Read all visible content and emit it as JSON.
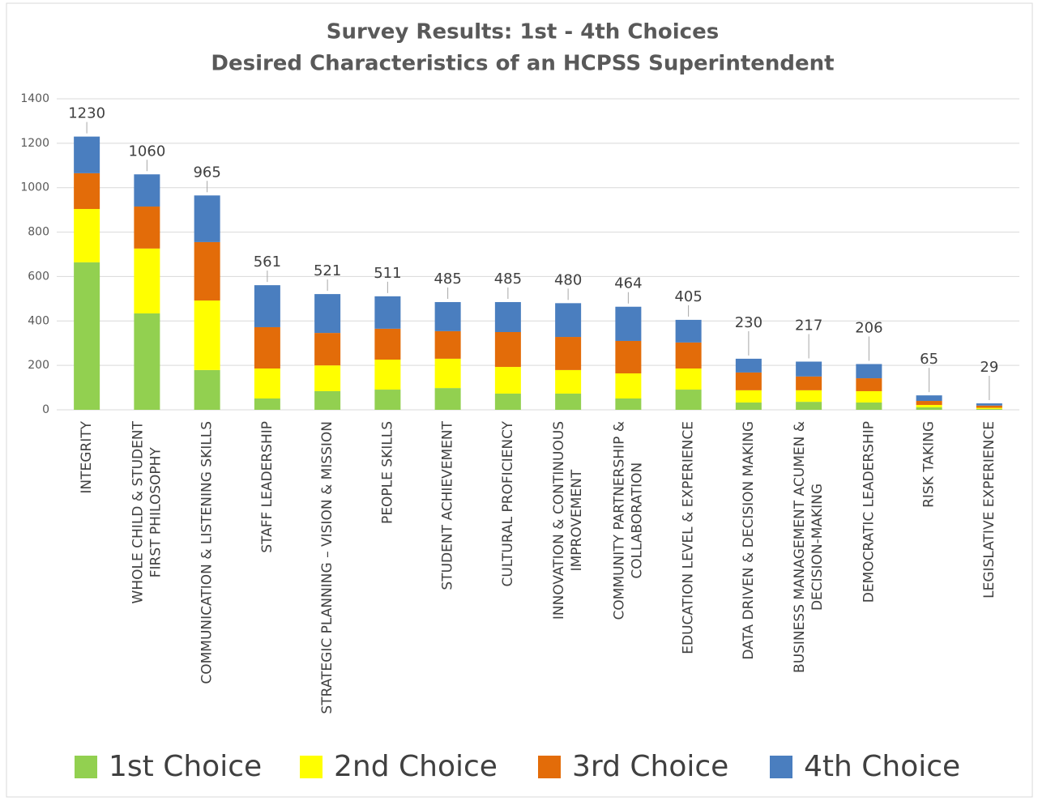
{
  "chart_data": {
    "type": "stacked_bar",
    "title": "Survey Results: 1st - 4th Choices",
    "subtitle": "Desired Characteristics of an HCPSS Superintendent",
    "categories": [
      "INTEGRITY",
      "WHOLE CHILD & STUDENT FIRST PHILOSOPHY",
      "COMMUNICATION & LISTENING SKILLS",
      "STAFF LEADERSHIP",
      "STRATEGIC PLANNING – VISION & MISSION",
      "PEOPLE SKILLS",
      "STUDENT ACHIEVEMENT",
      "CULTURAL PROFICIENCY",
      "INNOVATION & CONTINUOUS IMPROVEMENT",
      "COMMUNITY PARTNERSHIP & COLLABORATION",
      "EDUCATION LEVEL & EXPERIENCE",
      "DATA DRIVEN & DECISION MAKING",
      "BUSINESS MANAGEMENT ACUMEN & DECISION-MAKING",
      "DEMOCRATIC LEADERSHIP",
      "RISK TAKING",
      "LEGISLATIVE EXPERIENCE"
    ],
    "series": [
      {
        "name": "1st Choice",
        "color": "#92d050",
        "values": [
          664,
          434,
          179,
          51,
          84,
          91,
          98,
          73,
          73,
          51,
          91,
          33,
          36,
          33,
          11,
          4
        ]
      },
      {
        "name": "2nd Choice",
        "color": "#ffff00",
        "values": [
          240,
          292,
          313,
          135,
          116,
          135,
          132,
          120,
          106,
          113,
          95,
          55,
          52,
          51,
          11,
          5
        ]
      },
      {
        "name": "3rd Choice",
        "color": "#e36c09",
        "values": [
          161,
          189,
          263,
          186,
          146,
          139,
          124,
          157,
          149,
          146,
          117,
          80,
          62,
          58,
          18,
          10
        ]
      },
      {
        "name": "4th Choice",
        "color": "#4a7ebf",
        "values": [
          165,
          145,
          210,
          189,
          175,
          146,
          131,
          135,
          152,
          154,
          102,
          62,
          67,
          64,
          25,
          10
        ]
      }
    ],
    "totals": [
      1230,
      1060,
      965,
      561,
      521,
      511,
      485,
      485,
      480,
      464,
      405,
      230,
      217,
      206,
      65,
      29
    ],
    "ylim": [
      0,
      1400
    ],
    "yticks": [
      0,
      200,
      400,
      600,
      800,
      1000,
      1200,
      1400
    ],
    "grid": true,
    "legend": "bottom"
  }
}
